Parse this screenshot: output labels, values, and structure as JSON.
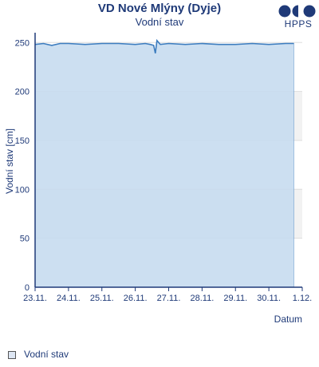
{
  "header": {
    "title": "VD Nové Mlýny (Dyje)",
    "subtitle": "Vodní stav"
  },
  "logo": {
    "text": "HPPS"
  },
  "legend": {
    "label": "Vodní stav"
  },
  "colors": {
    "line": "#3d7dbf",
    "fill": "#c6dbf0",
    "band": "#f2f2f2",
    "axis": "#1f3a78",
    "grid": "#dddddd"
  },
  "chart_data": {
    "type": "area",
    "ylabel": "Vodní stav [cm]",
    "xlabel": "Datum",
    "ylim": [
      0,
      260
    ],
    "yticks": [
      0,
      50,
      100,
      150,
      200,
      250
    ],
    "xticks": [
      "23.11.",
      "24.11.",
      "25.11.",
      "26.11.",
      "27.11.",
      "28.11.",
      "29.11.",
      "30.11.",
      "1.12."
    ],
    "grid": true,
    "legend_position": "bottom-left",
    "series": [
      {
        "name": "Vodní stav",
        "x_days_from_23_11": [
          0,
          0.25,
          0.5,
          0.75,
          1,
          1.5,
          2,
          2.5,
          3,
          3.3,
          3.45,
          3.55,
          3.6,
          3.65,
          3.75,
          4,
          4.5,
          5,
          5.5,
          6,
          6.5,
          7,
          7.5,
          7.75
        ],
        "values": [
          248,
          249,
          247,
          249,
          249,
          248,
          249,
          249,
          248,
          249,
          248,
          247,
          239,
          252,
          248,
          249,
          248,
          249,
          248,
          248,
          249,
          248,
          249,
          249
        ]
      }
    ]
  }
}
